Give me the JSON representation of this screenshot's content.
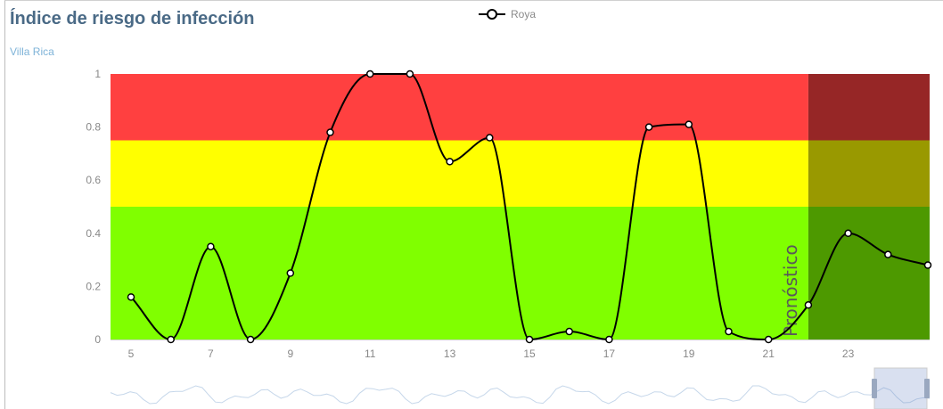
{
  "title": "Índice de riesgo de infección",
  "subtitle": "Villa Rica",
  "legend": {
    "label": "Roya",
    "icon": "line-circle-marker-icon"
  },
  "forecast_label": "Pronóstico",
  "colors": {
    "high_risk": "#ff4040",
    "medium_risk": "#ffff00",
    "low_risk": "#80ff00",
    "high_risk_forecast": "#962626",
    "medium_risk_forecast": "#999900",
    "low_risk_forecast": "#4d9900",
    "line": "#000000"
  },
  "chart_data": {
    "type": "line",
    "title": "Índice de riesgo de infección",
    "subtitle": "Villa Rica",
    "series": [
      {
        "name": "Roya",
        "x": [
          5,
          6,
          7,
          8,
          9,
          10,
          11,
          12,
          13,
          14,
          15,
          16,
          17,
          18,
          19,
          20,
          21,
          22,
          23,
          24,
          25
        ],
        "values": [
          0.16,
          0,
          0.35,
          0,
          0.25,
          0.78,
          1,
          1,
          0.67,
          0.76,
          0,
          0.03,
          0,
          0.8,
          0.81,
          0.03,
          0,
          0.13,
          0.4,
          0.32,
          0.28
        ]
      }
    ],
    "x_ticks": [
      5,
      7,
      9,
      11,
      13,
      15,
      17,
      19,
      21,
      23
    ],
    "y_ticks": [
      0,
      0.2,
      0.4,
      0.6,
      0.8,
      1
    ],
    "ylim": [
      0,
      1
    ],
    "xlim": [
      4.5,
      25
    ],
    "bands": [
      {
        "from": 0,
        "to": 0.5,
        "level": "low"
      },
      {
        "from": 0.5,
        "to": 0.75,
        "level": "medium"
      },
      {
        "from": 0.75,
        "to": 1,
        "level": "high"
      }
    ],
    "forecast_from_x": 22,
    "legend_position": "top-center",
    "grid": false,
    "navigator": true
  }
}
